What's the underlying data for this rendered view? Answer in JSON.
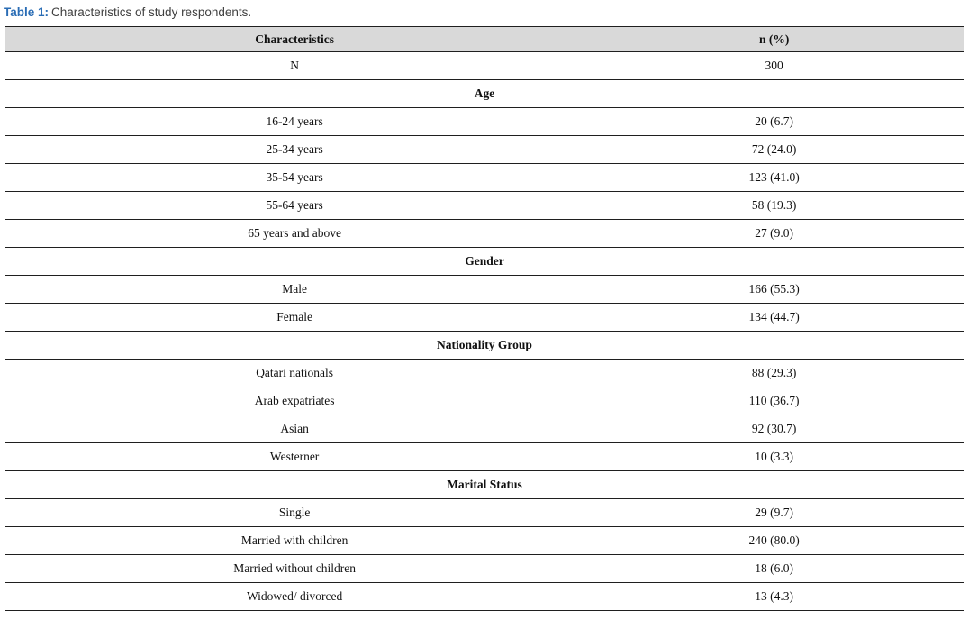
{
  "caption": {
    "label": "Table 1:",
    "text": "Characteristics of study respondents."
  },
  "table": {
    "columns": [
      "Characteristics",
      "n (%)"
    ],
    "rows": [
      {
        "type": "data",
        "label": "N",
        "value": "300"
      },
      {
        "type": "section",
        "label": "Age"
      },
      {
        "type": "data",
        "label": "16-24 years",
        "value": "20 (6.7)"
      },
      {
        "type": "data",
        "label": "25-34 years",
        "value": "72 (24.0)"
      },
      {
        "type": "data",
        "label": "35-54 years",
        "value": "123 (41.0)"
      },
      {
        "type": "data",
        "label": "55-64 years",
        "value": "58 (19.3)"
      },
      {
        "type": "data",
        "label": "65 years and above",
        "value": "27 (9.0)"
      },
      {
        "type": "section",
        "label": "Gender"
      },
      {
        "type": "data",
        "label": "Male",
        "value": "166 (55.3)"
      },
      {
        "type": "data",
        "label": "Female",
        "value": "134 (44.7)"
      },
      {
        "type": "section",
        "label": "Nationality Group"
      },
      {
        "type": "data",
        "label": "Qatari nationals",
        "value": "88 (29.3)"
      },
      {
        "type": "data",
        "label": "Arab expatriates",
        "value": "110 (36.7)"
      },
      {
        "type": "data",
        "label": "Asian",
        "value": "92 (30.7)"
      },
      {
        "type": "data",
        "label": "Westerner",
        "value": "10 (3.3)"
      },
      {
        "type": "section",
        "label": "Marital Status"
      },
      {
        "type": "data",
        "label": "Single",
        "value": "29 (9.7)"
      },
      {
        "type": "data",
        "label": "Married with children",
        "value": "240 (80.0)"
      },
      {
        "type": "data",
        "label": "Married without children",
        "value": "18 (6.0)"
      },
      {
        "type": "data",
        "label": "Widowed/ divorced",
        "value": "13 (4.3)"
      }
    ]
  },
  "chart_data": {
    "type": "table",
    "title": "Table 1: Characteristics of study respondents.",
    "columns": [
      "Characteristics",
      "n (%)"
    ],
    "sections": [
      {
        "name": null,
        "rows": [
          [
            "N",
            "300"
          ]
        ]
      },
      {
        "name": "Age",
        "rows": [
          [
            "16-24 years",
            "20 (6.7)"
          ],
          [
            "25-34 years",
            "72 (24.0)"
          ],
          [
            "35-54 years",
            "123 (41.0)"
          ],
          [
            "55-64 years",
            "58 (19.3)"
          ],
          [
            "65 years and above",
            "27 (9.0)"
          ]
        ]
      },
      {
        "name": "Gender",
        "rows": [
          [
            "Male",
            "166 (55.3)"
          ],
          [
            "Female",
            "134 (44.7)"
          ]
        ]
      },
      {
        "name": "Nationality Group",
        "rows": [
          [
            "Qatari nationals",
            "88 (29.3)"
          ],
          [
            "Arab expatriates",
            "110 (36.7)"
          ],
          [
            "Asian",
            "92 (30.7)"
          ],
          [
            "Westerner",
            "10 (3.3)"
          ]
        ]
      },
      {
        "name": "Marital Status",
        "rows": [
          [
            "Single",
            "29 (9.7)"
          ],
          [
            "Married with children",
            "240 (80.0)"
          ],
          [
            "Married without children",
            "18 (6.0)"
          ],
          [
            "Widowed/ divorced",
            "13 (4.3)"
          ]
        ]
      }
    ]
  },
  "colors": {
    "title_blue": "#2a6db5",
    "caption_gray": "#404040",
    "header_bg": "#d9d9d9",
    "border": "#1f1f1f",
    "text": "#111111"
  }
}
